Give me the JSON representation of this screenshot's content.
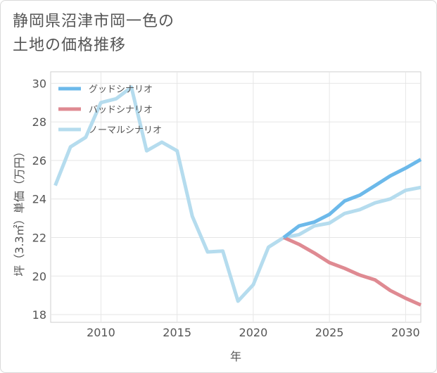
{
  "title_lines": [
    "静岡県沼津市岡一色の",
    "土地の価格推移"
  ],
  "chart_data": {
    "type": "line",
    "title": "静岡県沼津市岡一色の土地の価格推移",
    "xlabel": "年",
    "ylabel": "坪（3.3㎡）単価（万円）",
    "xlim": [
      2006.7,
      2031
    ],
    "ylim": [
      17.6,
      30.6
    ],
    "xticks": [
      2010,
      2015,
      2020,
      2025,
      2030
    ],
    "yticks": [
      18,
      20,
      22,
      24,
      26,
      28,
      30
    ],
    "grid": true,
    "legend_position": "top-left",
    "series": [
      {
        "name": "グッドシナリオ",
        "color": "#6cb9ea",
        "x": [
          2022,
          2023,
          2024,
          2025,
          2026,
          2027,
          2028,
          2029,
          2030,
          2031
        ],
        "y": [
          22.0,
          22.6,
          22.8,
          23.2,
          23.9,
          24.2,
          24.7,
          25.2,
          25.6,
          26.05
        ]
      },
      {
        "name": "バッドシナリオ",
        "color": "#df8a92",
        "x": [
          2022,
          2023,
          2024,
          2025,
          2026,
          2027,
          2028,
          2029,
          2030,
          2031
        ],
        "y": [
          22.0,
          21.65,
          21.2,
          20.7,
          20.4,
          20.05,
          19.8,
          19.25,
          18.85,
          18.5
        ]
      },
      {
        "name": "ノーマルシナリオ",
        "color": "#b5dcee",
        "x": [
          2007,
          2008,
          2009,
          2010,
          2011,
          2012,
          2013,
          2014,
          2015,
          2016,
          2017,
          2018,
          2019,
          2020,
          2021,
          2022,
          2023,
          2024,
          2025,
          2026,
          2027,
          2028,
          2029,
          2030,
          2031
        ],
        "y": [
          24.7,
          26.7,
          27.2,
          29.0,
          29.2,
          29.8,
          26.5,
          26.95,
          26.5,
          23.1,
          21.25,
          21.3,
          18.7,
          19.55,
          21.5,
          22.0,
          22.15,
          22.6,
          22.75,
          23.25,
          23.45,
          23.8,
          24.0,
          24.45,
          24.6
        ]
      }
    ]
  }
}
